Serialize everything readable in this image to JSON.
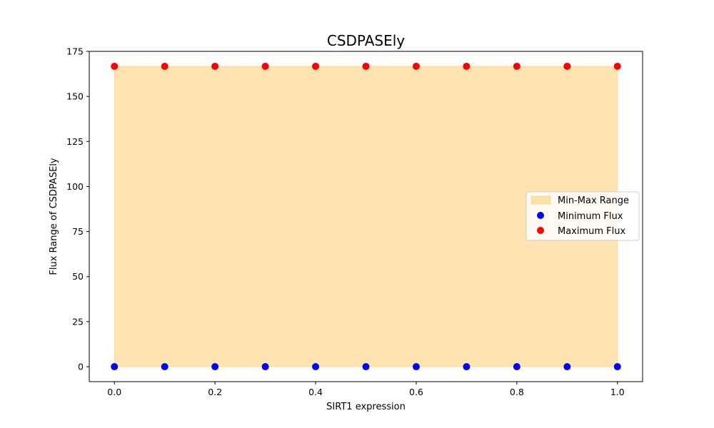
{
  "chart_data": {
    "type": "scatter",
    "title": "CSDPASEly",
    "xlabel": "SIRT1 expression",
    "ylabel": "Flux Range of CSDPASEly",
    "xlim": [
      -0.05,
      1.05
    ],
    "ylim": [
      -8.3,
      175
    ],
    "xticks": [
      0.0,
      0.2,
      0.4,
      0.6,
      0.8,
      1.0
    ],
    "xtick_labels": [
      "0.0",
      "0.2",
      "0.4",
      "0.6",
      "0.8",
      "1.0"
    ],
    "yticks": [
      0,
      25,
      50,
      75,
      100,
      125,
      150,
      175
    ],
    "ytick_labels": [
      "0",
      "25",
      "50",
      "75",
      "100",
      "125",
      "150",
      "175"
    ],
    "x": [
      0.0,
      0.1,
      0.2,
      0.3,
      0.4,
      0.5,
      0.6,
      0.7,
      0.8,
      0.9,
      1.0
    ],
    "series": [
      {
        "name": "Minimum Flux",
        "color": "#0000ff",
        "values": [
          0,
          0,
          0,
          0,
          0,
          0,
          0,
          0,
          0,
          0,
          0
        ]
      },
      {
        "name": "Maximum Flux",
        "color": "#ff0000",
        "values": [
          166.7,
          166.7,
          166.7,
          166.7,
          166.7,
          166.7,
          166.7,
          166.7,
          166.7,
          166.7,
          166.7
        ]
      }
    ],
    "fill": {
      "name": "Min-Max Range",
      "color": "#ffa500",
      "opacity": 0.3
    },
    "legend": {
      "placement": "right",
      "entries": [
        "Min-Max Range",
        "Minimum Flux",
        "Maximum Flux"
      ]
    },
    "grid": false
  }
}
